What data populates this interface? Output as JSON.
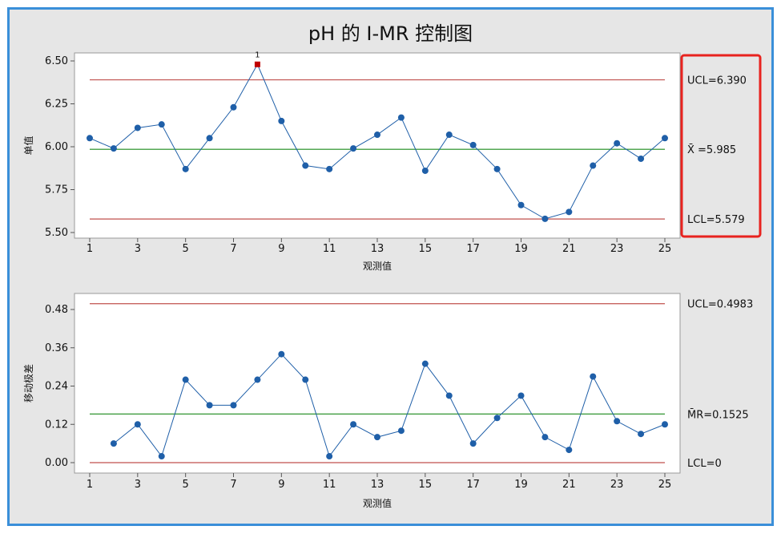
{
  "title": "pH 的 I-MR 控制图",
  "colors": {
    "frame_border": "#3a8fd9",
    "frame_bg": "#e6e6e6",
    "plot_bg": "#ffffff",
    "series": "#1f5fa8",
    "marker": "#1f5fa8",
    "flagged_marker": "#c00000",
    "control_limit": "#c0504d",
    "center_line": "#1a8a1a",
    "highlight_box": "#e8231f"
  },
  "chart_data": [
    {
      "type": "line",
      "name": "individual-chart",
      "ylabel": "单值",
      "xlabel": "观测值",
      "xlim": [
        1,
        25
      ],
      "ylim": [
        5.5,
        6.5
      ],
      "xticks": [
        1,
        3,
        5,
        7,
        9,
        11,
        13,
        15,
        17,
        19,
        21,
        23,
        25
      ],
      "yticks": [
        "5.50",
        "5.75",
        "6.00",
        "6.25",
        "6.50"
      ],
      "x": [
        1,
        2,
        3,
        4,
        5,
        6,
        7,
        8,
        9,
        10,
        11,
        12,
        13,
        14,
        15,
        16,
        17,
        18,
        19,
        20,
        21,
        22,
        23,
        24,
        25
      ],
      "values": [
        6.05,
        5.99,
        6.11,
        6.13,
        5.87,
        6.05,
        6.23,
        6.48,
        6.15,
        5.89,
        5.87,
        5.99,
        6.07,
        6.17,
        5.86,
        6.07,
        6.01,
        5.87,
        5.66,
        5.58,
        5.62,
        5.89,
        6.02,
        5.93,
        6.05
      ],
      "ucl": 6.39,
      "center": 5.985,
      "lcl": 5.579,
      "ucl_label": "UCL=6.390",
      "center_label": "X̄ =5.985",
      "lcl_label": "LCL=5.579",
      "flagged": [
        {
          "x": 8,
          "label": "1"
        }
      ],
      "highlight_limits_box": true
    },
    {
      "type": "line",
      "name": "moving-range-chart",
      "ylabel": "移动极差",
      "xlabel": "观测值",
      "xlim": [
        1,
        25
      ],
      "ylim": [
        0,
        0.48
      ],
      "xticks": [
        1,
        3,
        5,
        7,
        9,
        11,
        13,
        15,
        17,
        19,
        21,
        23,
        25
      ],
      "yticks": [
        "0.00",
        "0.12",
        "0.24",
        "0.36",
        "0.48"
      ],
      "x": [
        2,
        3,
        4,
        5,
        6,
        7,
        8,
        9,
        10,
        11,
        12,
        13,
        14,
        15,
        16,
        17,
        18,
        19,
        20,
        21,
        22,
        23,
        24,
        25
      ],
      "values": [
        0.06,
        0.12,
        0.02,
        0.26,
        0.18,
        0.18,
        0.26,
        0.34,
        0.26,
        0.02,
        0.12,
        0.08,
        0.1,
        0.31,
        0.21,
        0.06,
        0.14,
        0.21,
        0.08,
        0.04,
        0.27,
        0.13,
        0.09,
        0.12
      ],
      "ucl": 0.4983,
      "center": 0.1525,
      "lcl": 0,
      "ucl_label": "UCL=0.4983",
      "center_label": "M̄R=0.1525",
      "lcl_label": "LCL=0"
    }
  ]
}
